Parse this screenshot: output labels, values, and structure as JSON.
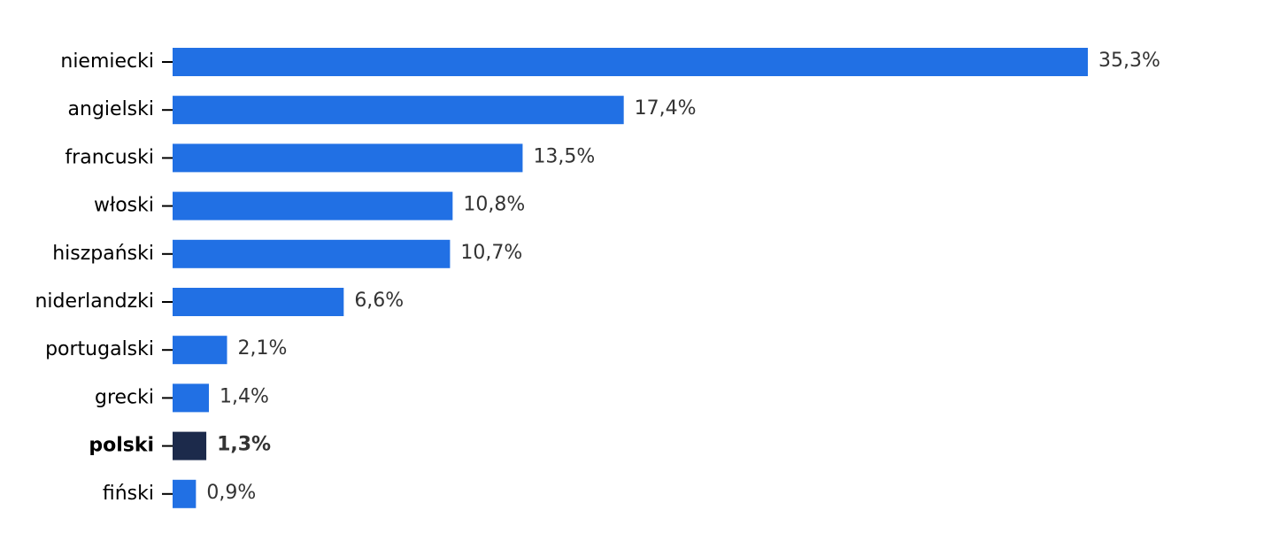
{
  "chart_data": {
    "type": "barh",
    "categories": [
      "niemiecki",
      "angielski",
      "francuski",
      "włoski",
      "hiszpański",
      "niderlandzki",
      "portugalski",
      "grecki",
      "polski",
      "fiński"
    ],
    "values": [
      35.3,
      17.4,
      13.5,
      10.8,
      10.7,
      6.6,
      2.1,
      1.4,
      1.3,
      0.9
    ],
    "value_labels": [
      "35,3%",
      "17,4%",
      "13,5%",
      "10,8%",
      "10,7%",
      "6,6%",
      "2,1%",
      "1,4%",
      "1,3%",
      "0,9%"
    ],
    "color": "#2170e4",
    "highlight": "polski",
    "highlight_color": "#1c2a4b"
  }
}
